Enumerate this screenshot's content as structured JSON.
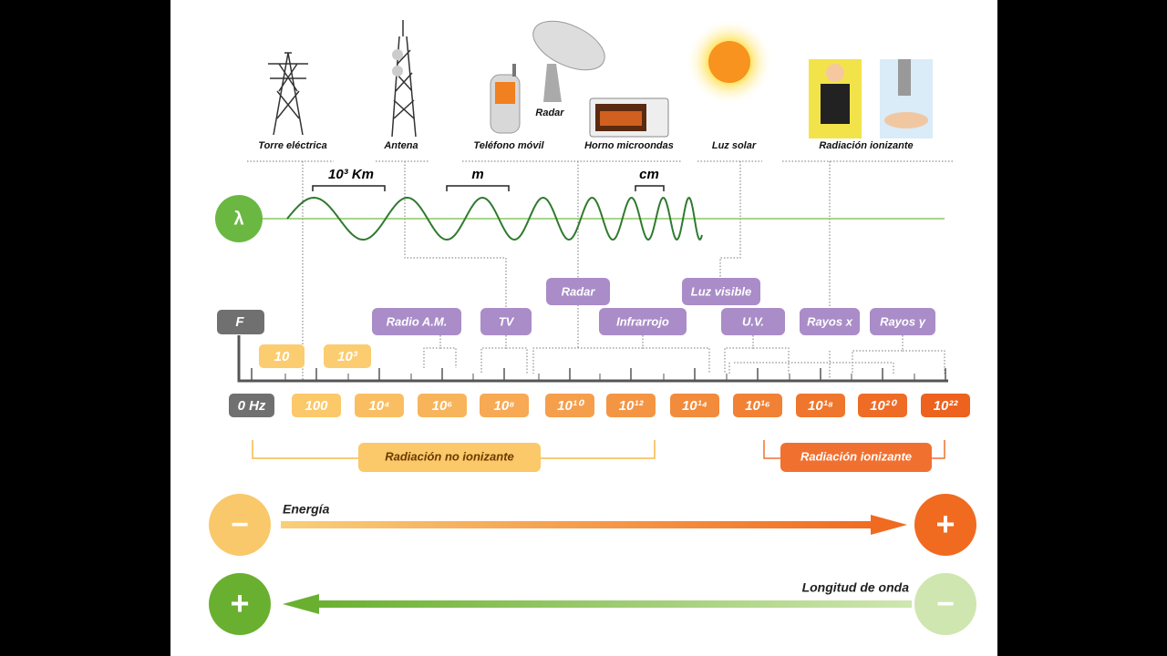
{
  "devices": [
    "Torre eléctrica",
    "Antena",
    "Teléfono móvil",
    "Radar",
    "Horno microondas",
    "Luz solar",
    "Radiación ionizante"
  ],
  "wavelength": {
    "symbol": "λ",
    "scales": [
      "10³ Km",
      "m",
      "cm"
    ]
  },
  "bands": [
    "Radio A.M.",
    "TV",
    "Radar",
    "Infrarrojo",
    "Luz visible",
    "U.V.",
    "Rayos x",
    "Rayos γ"
  ],
  "frequency": {
    "symbol": "F",
    "upper_labels": [
      "10",
      "10³"
    ],
    "labels": [
      "0 Hz",
      "100",
      "10⁴",
      "10⁶",
      "10⁸",
      "10¹⁰",
      "10¹²",
      "10¹⁴",
      "10¹⁶",
      "10¹⁸",
      "10²⁰",
      "10²²"
    ]
  },
  "radiation": [
    "Radiación no ionizante",
    "Radiación ionizante"
  ],
  "energy": {
    "label": "Energía",
    "low": "−",
    "high": "+"
  },
  "wavelength_length": {
    "label": "Longitud de onda",
    "high": "+",
    "low": "−"
  }
}
